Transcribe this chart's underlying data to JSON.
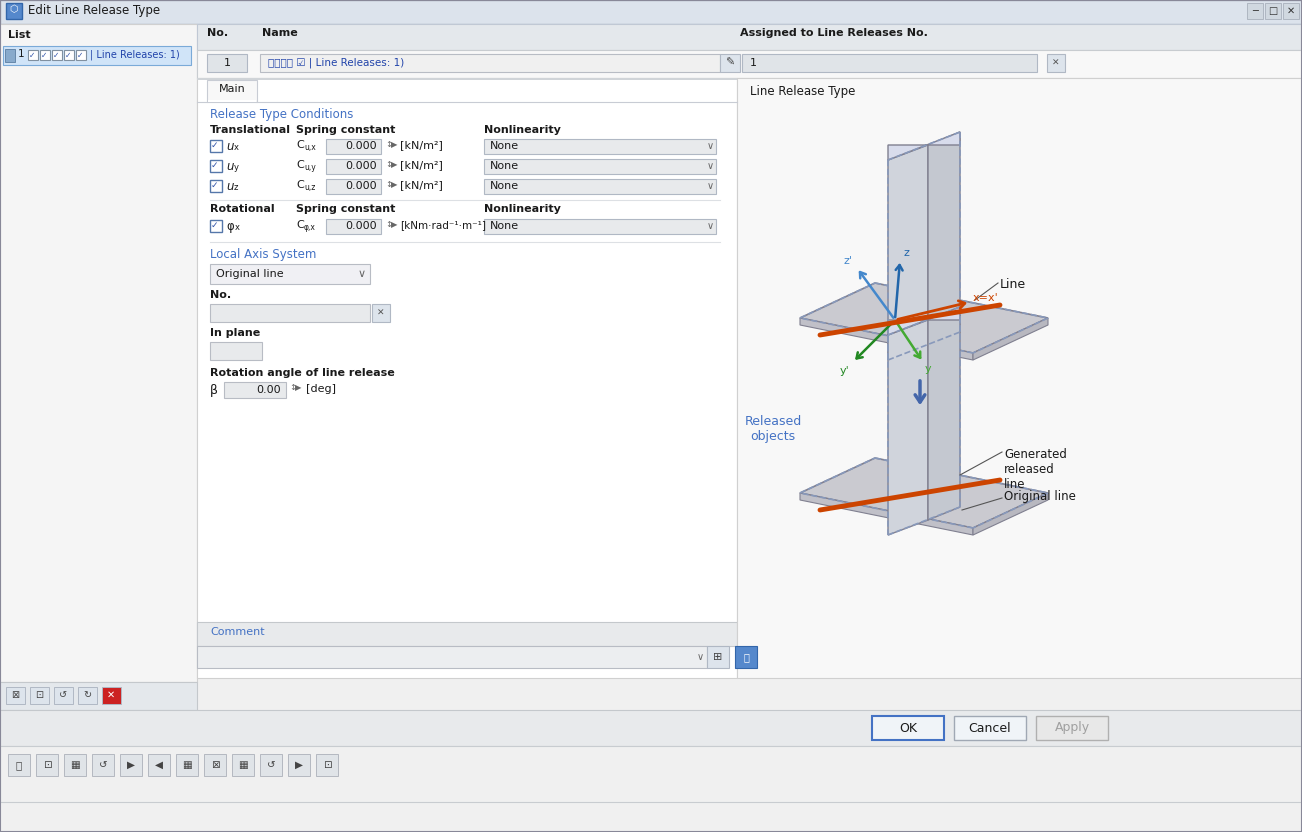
{
  "title_bar": "Edit Line Release Type",
  "window_bg": "#f0f0f0",
  "panel_bg": "#ffffff",
  "blue_text": "#4472c4",
  "dark_text": "#1a1a1a",
  "no_label": "No.",
  "no_value": "1",
  "name_label": "Name",
  "name_value": "☑☑☑☑ ☑ | Line Releases: 1)",
  "assigned_label": "Assigned to Line Releases No.",
  "assigned_value": "1",
  "tab_main": "Main",
  "section1_title": "Release Type Conditions",
  "trans_label": "Translational",
  "spring_label": "Spring constant",
  "nonlin_label": "Nonlinearity",
  "spring_unit": "[kN/m²]",
  "spring_value": "0.000",
  "rot_label": "Rotational",
  "rot_unit": "[kNm·rad⁻¹·m⁻¹]",
  "none_text": "None",
  "local_axis_title": "Local Axis System",
  "original_line": "Original line",
  "in_plane": "In plane",
  "rot_angle_label": "Rotation angle of line release",
  "beta_label": "β",
  "beta_value": "0.00",
  "deg_unit": "[deg]",
  "comment_label": "Comment",
  "line_release_type_label": "Line Release Type",
  "list_header": "List",
  "list_item": "1  ☑☑☑☑ ☑ | Line Releases: 1)",
  "ok_btn": "OK",
  "cancel_btn": "Cancel",
  "apply_btn": "Apply",
  "diagram_line_label": "Line",
  "diagram_released_label": "Released\nobjects",
  "diagram_gen_label": "Generated\nreleased\nline",
  "diagram_orig_label": "Original line",
  "zp_color": "#4488cc",
  "z_color": "#2266aa",
  "x_color": "#cc4400",
  "y_color": "#44aa33",
  "yp_color": "#228822",
  "arrow_color": "#4466aa",
  "plate_face": "#d8d8dc",
  "plate_edge_solid": "#808090",
  "plate_edge_dash": "#8899bb",
  "vert_plate_face": "#d0d4dc",
  "horiz_plate_face": "#cacad0"
}
